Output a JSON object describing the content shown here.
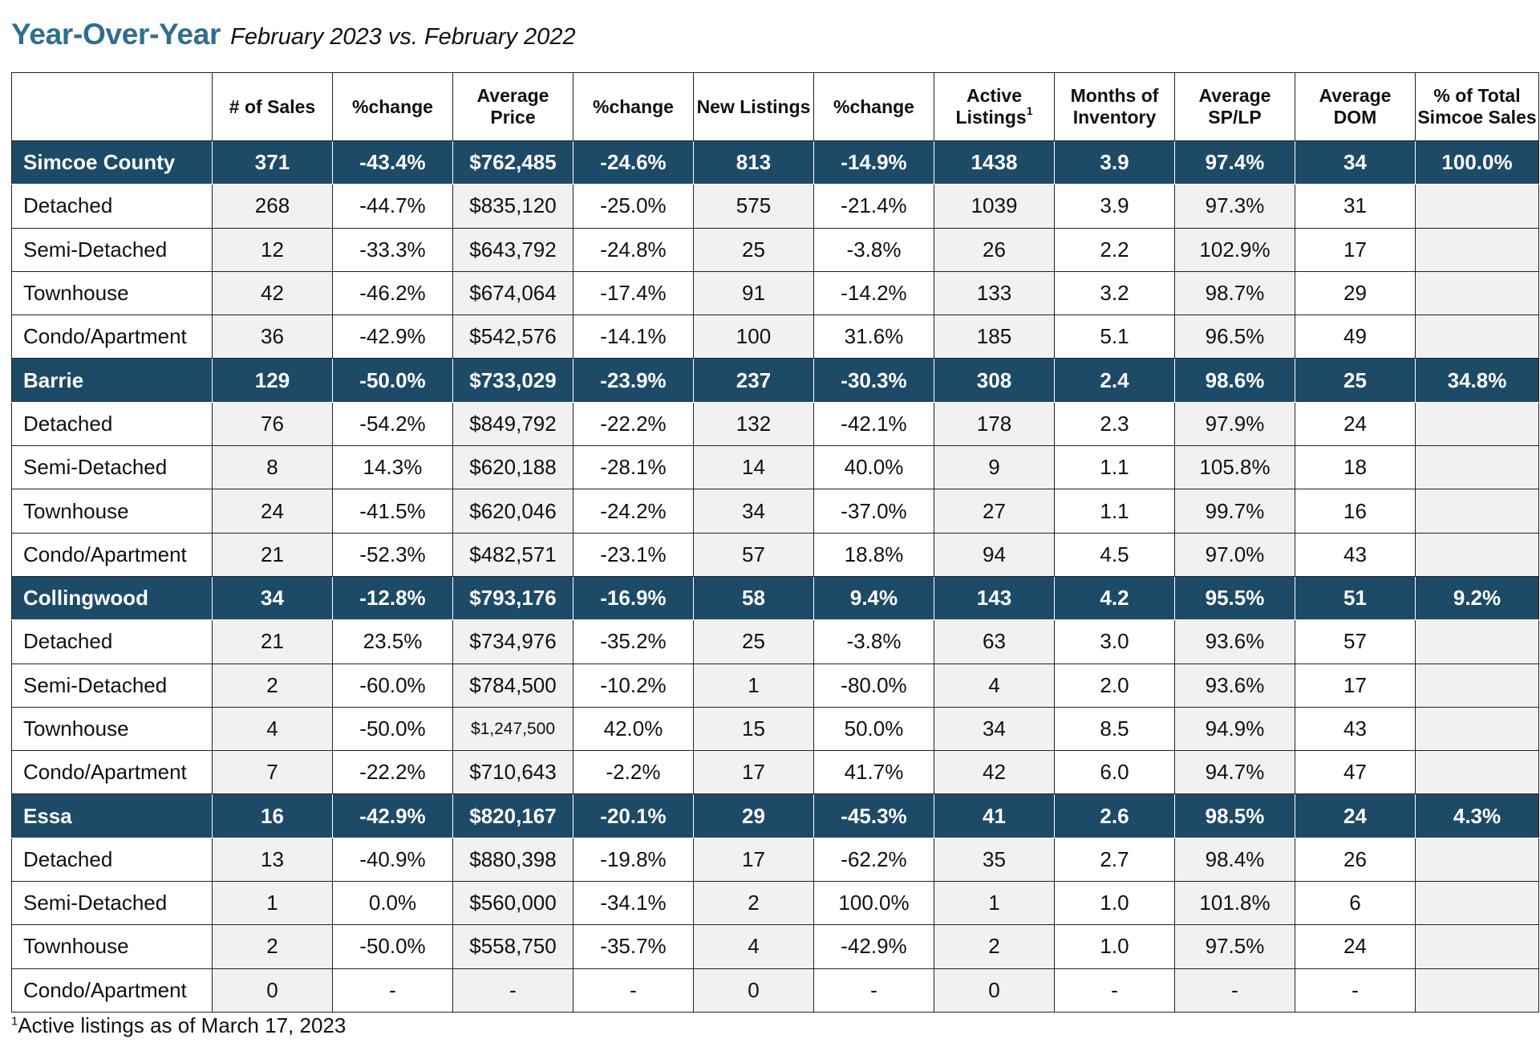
{
  "title": {
    "main": "Year-Over-Year",
    "subtitle": "February 2023 vs. February 2022"
  },
  "table": {
    "headers": [
      "",
      "# of Sales",
      "%change",
      "Average Price",
      "%change",
      "New Listings",
      "%change",
      "Active Listings",
      "Months of Inventory",
      "Average SP/LP",
      "Average DOM",
      "% of Total Simcoe Sales"
    ],
    "header_footnote_mark": "1",
    "rows": [
      {
        "kind": "region",
        "cells": [
          "Simcoe County",
          "371",
          "-43.4%",
          "$762,485",
          "-24.6%",
          "813",
          "-14.9%",
          "1438",
          "3.9",
          "97.4%",
          "34",
          "100.0%"
        ]
      },
      {
        "kind": "sub",
        "cells": [
          "Detached",
          "268",
          "-44.7%",
          "$835,120",
          "-25.0%",
          "575",
          "-21.4%",
          "1039",
          "3.9",
          "97.3%",
          "31",
          ""
        ]
      },
      {
        "kind": "sub",
        "cells": [
          "Semi-Detached",
          "12",
          "-33.3%",
          "$643,792",
          "-24.8%",
          "25",
          "-3.8%",
          "26",
          "2.2",
          "102.9%",
          "17",
          ""
        ]
      },
      {
        "kind": "sub",
        "cells": [
          "Townhouse",
          "42",
          "-46.2%",
          "$674,064",
          "-17.4%",
          "91",
          "-14.2%",
          "133",
          "3.2",
          "98.7%",
          "29",
          ""
        ]
      },
      {
        "kind": "sub",
        "cells": [
          "Condo/Apartment",
          "36",
          "-42.9%",
          "$542,576",
          "-14.1%",
          "100",
          "31.6%",
          "185",
          "5.1",
          "96.5%",
          "49",
          ""
        ]
      },
      {
        "kind": "region",
        "cells": [
          "Barrie",
          "129",
          "-50.0%",
          "$733,029",
          "-23.9%",
          "237",
          "-30.3%",
          "308",
          "2.4",
          "98.6%",
          "25",
          "34.8%"
        ]
      },
      {
        "kind": "sub",
        "cells": [
          "Detached",
          "76",
          "-54.2%",
          "$849,792",
          "-22.2%",
          "132",
          "-42.1%",
          "178",
          "2.3",
          "97.9%",
          "24",
          ""
        ]
      },
      {
        "kind": "sub",
        "cells": [
          "Semi-Detached",
          "8",
          "14.3%",
          "$620,188",
          "-28.1%",
          "14",
          "40.0%",
          "9",
          "1.1",
          "105.8%",
          "18",
          ""
        ]
      },
      {
        "kind": "sub",
        "cells": [
          "Townhouse",
          "24",
          "-41.5%",
          "$620,046",
          "-24.2%",
          "34",
          "-37.0%",
          "27",
          "1.1",
          "99.7%",
          "16",
          ""
        ]
      },
      {
        "kind": "sub",
        "cells": [
          "Condo/Apartment",
          "21",
          "-52.3%",
          "$482,571",
          "-23.1%",
          "57",
          "18.8%",
          "94",
          "4.5",
          "97.0%",
          "43",
          ""
        ]
      },
      {
        "kind": "region",
        "cells": [
          "Collingwood",
          "34",
          "-12.8%",
          "$793,176",
          "-16.9%",
          "58",
          "9.4%",
          "143",
          "4.2",
          "95.5%",
          "51",
          "9.2%"
        ]
      },
      {
        "kind": "sub",
        "cells": [
          "Detached",
          "21",
          "23.5%",
          "$734,976",
          "-35.2%",
          "25",
          "-3.8%",
          "63",
          "3.0",
          "93.6%",
          "57",
          ""
        ]
      },
      {
        "kind": "sub",
        "cells": [
          "Semi-Detached",
          "2",
          "-60.0%",
          "$784,500",
          "-10.2%",
          "1",
          "-80.0%",
          "4",
          "2.0",
          "93.6%",
          "17",
          ""
        ]
      },
      {
        "kind": "sub",
        "cells": [
          "Townhouse",
          "4",
          "-50.0%",
          "$1,247,500",
          "42.0%",
          "15",
          "50.0%",
          "34",
          "8.5",
          "94.9%",
          "43",
          ""
        ]
      },
      {
        "kind": "sub",
        "cells": [
          "Condo/Apartment",
          "7",
          "-22.2%",
          "$710,643",
          "-2.2%",
          "17",
          "41.7%",
          "42",
          "6.0",
          "94.7%",
          "47",
          ""
        ]
      },
      {
        "kind": "region",
        "cells": [
          "Essa",
          "16",
          "-42.9%",
          "$820,167",
          "-20.1%",
          "29",
          "-45.3%",
          "41",
          "2.6",
          "98.5%",
          "24",
          "4.3%"
        ]
      },
      {
        "kind": "sub",
        "cells": [
          "Detached",
          "13",
          "-40.9%",
          "$880,398",
          "-19.8%",
          "17",
          "-62.2%",
          "35",
          "2.7",
          "98.4%",
          "26",
          ""
        ]
      },
      {
        "kind": "sub",
        "cells": [
          "Semi-Detached",
          "1",
          "0.0%",
          "$560,000",
          "-34.1%",
          "2",
          "100.0%",
          "1",
          "1.0",
          "101.8%",
          "6",
          ""
        ]
      },
      {
        "kind": "sub",
        "cells": [
          "Townhouse",
          "2",
          "-50.0%",
          "$558,750",
          "-35.7%",
          "4",
          "-42.9%",
          "2",
          "1.0",
          "97.5%",
          "24",
          ""
        ]
      },
      {
        "kind": "sub",
        "cells": [
          "Condo/Apartment",
          "0",
          "-",
          "-",
          "-",
          "0",
          "-",
          "0",
          "-",
          "-",
          "-",
          ""
        ]
      }
    ]
  },
  "footnote": {
    "mark": "1",
    "text": "Active listings as of March 17, 2023"
  }
}
